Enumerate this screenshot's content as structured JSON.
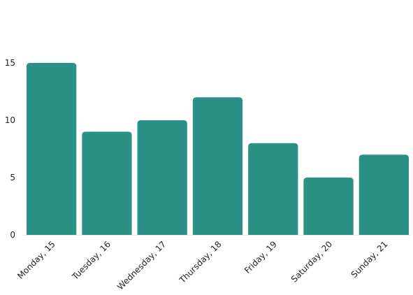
{
  "chart_data": {
    "type": "bar",
    "title": "",
    "xlabel": "",
    "ylabel": "",
    "categories": [
      "Monday, 15",
      "Tuesday, 16",
      "Wednesday, 17",
      "Thursday, 18",
      "Friday, 19",
      "Saturday, 20",
      "Sunday, 21"
    ],
    "values": [
      15,
      9,
      10,
      12,
      8,
      5,
      7
    ],
    "ylim": [
      0,
      15
    ],
    "yticks": [
      0,
      5,
      10,
      15
    ],
    "grid": false,
    "legend": "none",
    "bar_color": "#2a9184"
  }
}
